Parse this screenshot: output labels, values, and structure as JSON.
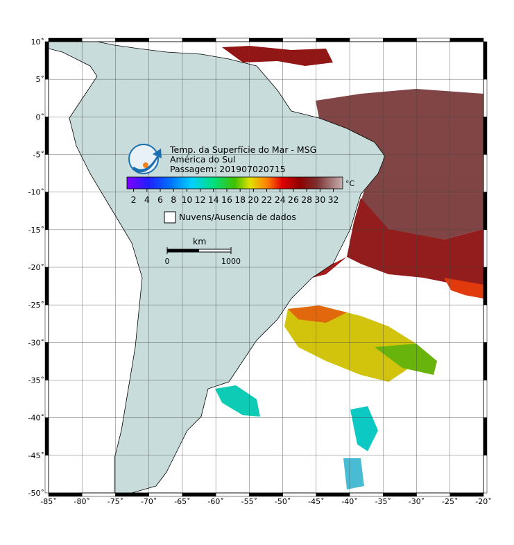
{
  "map": {
    "lonlim": [
      -85,
      -20
    ],
    "latlim": [
      -50,
      10
    ],
    "lonticks": [
      {
        "value": -85,
        "label": "-85˚"
      },
      {
        "value": -80,
        "label": "-80˚"
      },
      {
        "value": -75,
        "label": "-75˚"
      },
      {
        "value": -70,
        "label": "-70˚"
      },
      {
        "value": -65,
        "label": "-65˚"
      },
      {
        "value": -60,
        "label": "-60˚"
      },
      {
        "value": -55,
        "label": "-55˚"
      },
      {
        "value": -50,
        "label": "-50˚"
      },
      {
        "value": -45,
        "label": "-45˚"
      },
      {
        "value": -40,
        "label": "-40˚"
      },
      {
        "value": -35,
        "label": "-35˚"
      },
      {
        "value": -30,
        "label": "-30˚"
      },
      {
        "value": -25,
        "label": "-25˚"
      },
      {
        "value": -20,
        "label": "-20˚"
      }
    ],
    "latticks": [
      {
        "value": 10,
        "label": "10˚"
      },
      {
        "value": 5,
        "label": "5˚"
      },
      {
        "value": 0,
        "label": "0˚"
      },
      {
        "value": -5,
        "label": "-5˚"
      },
      {
        "value": -10,
        "label": "-10˚"
      },
      {
        "value": -15,
        "label": "-15˚"
      },
      {
        "value": -20,
        "label": "-20˚"
      },
      {
        "value": -25,
        "label": "-25˚"
      },
      {
        "value": -30,
        "label": "-30˚"
      },
      {
        "value": -35,
        "label": "-35˚"
      },
      {
        "value": -40,
        "label": "-40˚"
      },
      {
        "value": -45,
        "label": "-45˚"
      },
      {
        "value": -50,
        "label": "-50˚"
      }
    ],
    "grid": true
  },
  "legend": {
    "title": "Temp. da Superfície do Mar - MSG",
    "region": "América do Sul",
    "pass": "Passagem: 201907020715",
    "colorbar": {
      "unit": "°C",
      "lim": [
        1,
        33.4
      ],
      "ticks": [
        2,
        4,
        6,
        8,
        10,
        12,
        14,
        16,
        18,
        20,
        22,
        24,
        26,
        28,
        30,
        32
      ]
    },
    "clouds": "Nuvens/Ausencia de dados",
    "scale": {
      "unit": "km",
      "ticks": [
        0,
        1000
      ]
    }
  }
}
